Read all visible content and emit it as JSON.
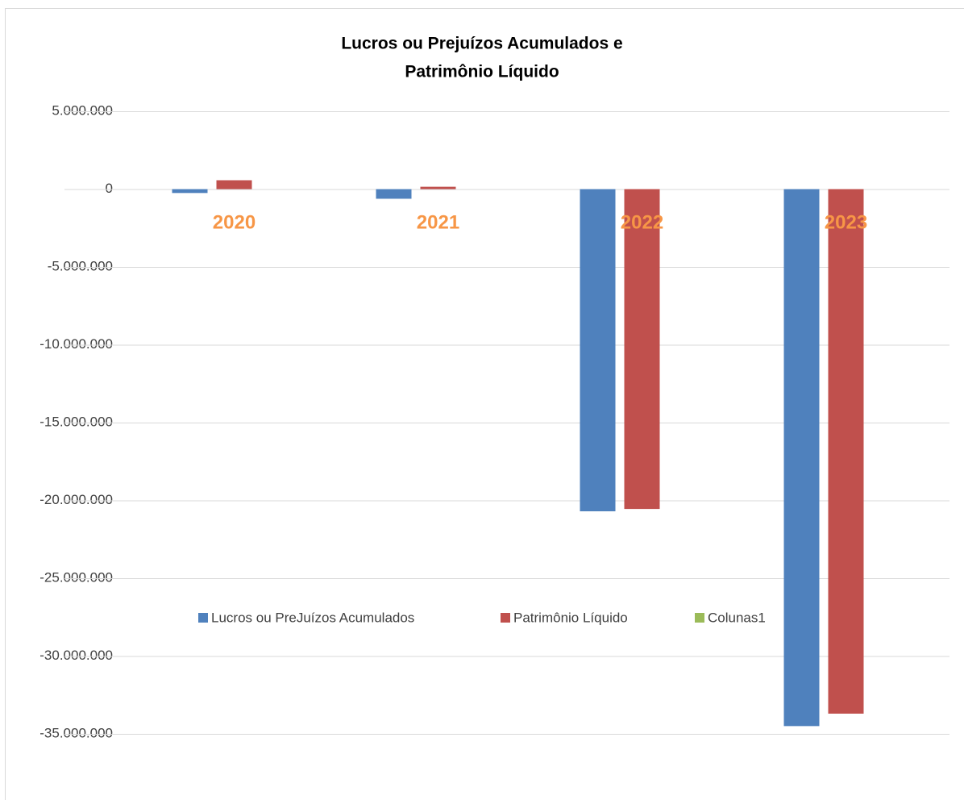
{
  "chart_data": {
    "type": "bar",
    "title": [
      "Lucros ou Prejuízos Acumulados e",
      "Patrimônio Líquido"
    ],
    "categories": [
      "2020",
      "2021",
      "2022",
      "2023"
    ],
    "series": [
      {
        "name": "Lucros ou PreJuízos Acumulados",
        "color": "#4f81bd",
        "values": [
          -250000,
          -620000,
          -20700000,
          -34500000
        ]
      },
      {
        "name": "Patrimônio Líquido",
        "color": "#c0504d",
        "values": [
          570000,
          150000,
          -20550000,
          -33700000
        ]
      },
      {
        "name": "Colunas1",
        "color": "#9bbb59",
        "values": [
          null,
          null,
          null,
          null
        ]
      }
    ],
    "category_label_color": "#f79646",
    "ylim": [
      -35000000,
      5000000
    ],
    "yticks": [
      {
        "value": 5000000,
        "label": "5.000.000"
      },
      0,
      {
        "value": -5000000,
        "label": "-5.000.000"
      },
      {
        "value": -10000000,
        "label": "-10.000.000"
      },
      {
        "value": -15000000,
        "label": "-15.000.000"
      },
      {
        "value": -20000000,
        "label": "-20.000.000"
      },
      {
        "value": -25000000,
        "label": "-25.000.000"
      },
      {
        "value": -30000000,
        "label": "-30.000.000"
      },
      {
        "value": -35000000,
        "label": "-35.000.000"
      }
    ],
    "grid": true,
    "legend": "bottom"
  }
}
